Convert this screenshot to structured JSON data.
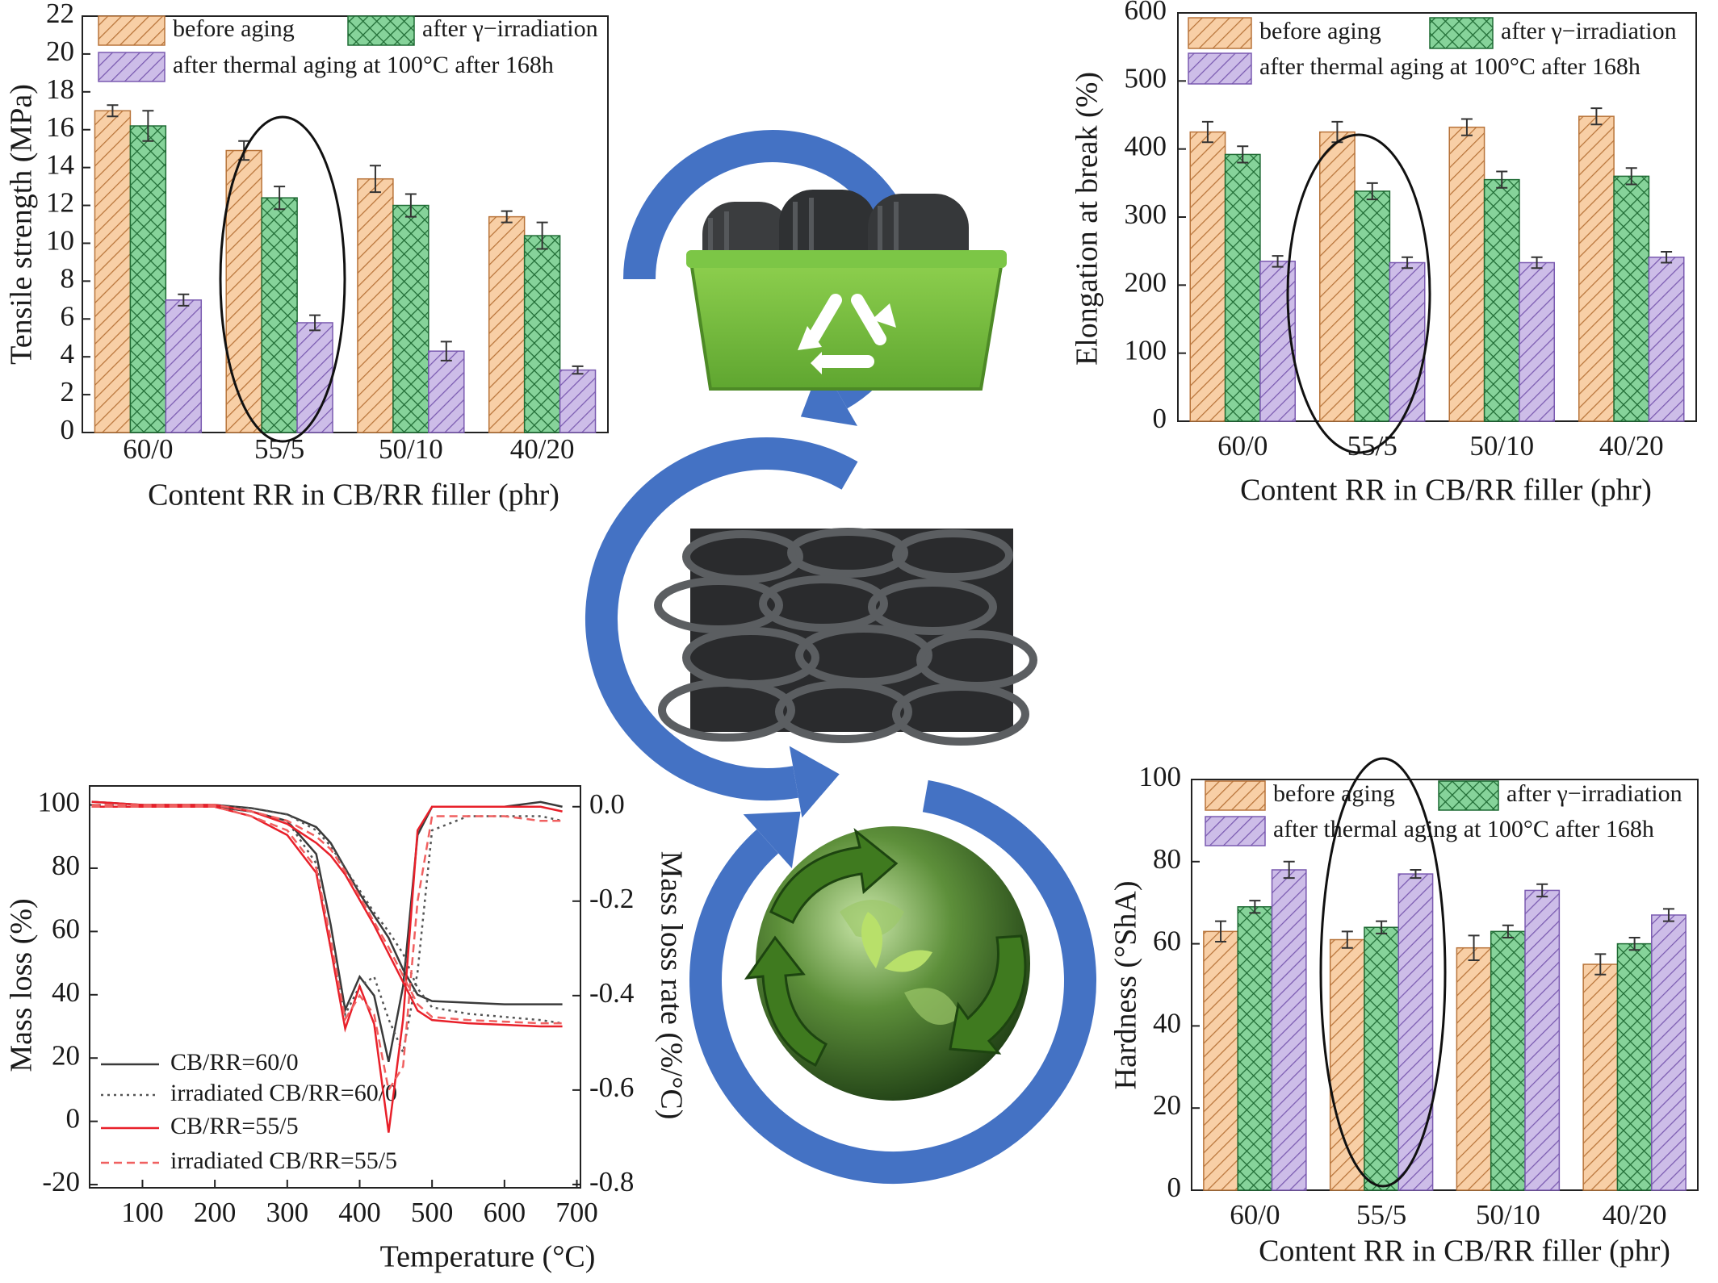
{
  "chart_data": [
    {
      "type": "bar",
      "y_label": "Tensile strength (MPa)",
      "x_label": "Content RR in CB/RR filler (phr)",
      "categories": [
        "60/0",
        "55/5",
        "50/10",
        "40/20"
      ],
      "ylim": [
        0,
        22
      ],
      "yticks": [
        0,
        2,
        4,
        6,
        8,
        10,
        12,
        14,
        16,
        18,
        20,
        22
      ],
      "series": [
        {
          "name": "before aging",
          "color": "#f8cfa6",
          "hatch_color": "#b8743a",
          "pattern": "hatch",
          "values": [
            17.0,
            14.9,
            13.4,
            11.4
          ],
          "errors": [
            0.3,
            0.5,
            0.7,
            0.3
          ]
        },
        {
          "name": "after γ−irradiation",
          "color": "#86d39a",
          "hatch_color": "#1f6b34",
          "pattern": "cross",
          "values": [
            16.2,
            12.4,
            12.0,
            10.4
          ],
          "errors": [
            0.8,
            0.6,
            0.6,
            0.7
          ]
        },
        {
          "name": "after thermal aging at 100°C after 168h",
          "color": "#cdbde8",
          "hatch_color": "#7a5ab0",
          "pattern": "hatch",
          "values": [
            7.0,
            5.8,
            4.3,
            3.3
          ],
          "errors": [
            0.3,
            0.4,
            0.5,
            0.2
          ]
        }
      ]
    },
    {
      "type": "bar",
      "y_label": "Elongation at break (%)",
      "x_label": "Content RR in CB/RR filler (phr)",
      "categories": [
        "60/0",
        "55/5",
        "50/10",
        "40/20"
      ],
      "ylim": [
        0,
        600
      ],
      "yticks": [
        0,
        100,
        200,
        300,
        400,
        500,
        600
      ],
      "series": [
        {
          "name": "before aging",
          "color": "#f8cfa6",
          "hatch_color": "#b8743a",
          "pattern": "hatch",
          "values": [
            425,
            425,
            432,
            448
          ],
          "errors": [
            15,
            15,
            12,
            12
          ]
        },
        {
          "name": "after γ−irradiation",
          "color": "#86d39a",
          "hatch_color": "#1f6b34",
          "pattern": "cross",
          "values": [
            392,
            338,
            355,
            360
          ],
          "errors": [
            12,
            12,
            12,
            12
          ]
        },
        {
          "name": "after thermal aging at 100°C after 168h",
          "color": "#cdbde8",
          "hatch_color": "#7a5ab0",
          "pattern": "hatch",
          "values": [
            235,
            233,
            233,
            241
          ],
          "errors": [
            8,
            8,
            8,
            8
          ]
        }
      ]
    },
    {
      "type": "bar",
      "y_label": "Hardness (°ShA)",
      "x_label": "Content RR in CB/RR filler (phr)",
      "categories": [
        "60/0",
        "55/5",
        "50/10",
        "40/20"
      ],
      "ylim": [
        0,
        100
      ],
      "yticks": [
        0,
        20,
        40,
        60,
        80,
        100
      ],
      "series": [
        {
          "name": "before aging",
          "color": "#f8cfa6",
          "hatch_color": "#b8743a",
          "pattern": "hatch",
          "values": [
            63,
            61,
            59,
            55
          ],
          "errors": [
            2.5,
            2,
            3,
            2.5
          ]
        },
        {
          "name": "after γ−irradiation",
          "color": "#86d39a",
          "hatch_color": "#1f6b34",
          "pattern": "cross",
          "values": [
            69,
            64,
            63,
            60
          ],
          "errors": [
            1.5,
            1.5,
            1.5,
            1.5
          ]
        },
        {
          "name": "after thermal aging at 100°C after 168h",
          "color": "#cdbde8",
          "hatch_color": "#7a5ab0",
          "pattern": "hatch",
          "values": [
            78,
            77,
            73,
            67
          ],
          "errors": [
            2,
            1,
            1.5,
            1.5
          ]
        }
      ]
    },
    {
      "type": "line",
      "x_label": "Temperature (°C)",
      "y_label": "Mass loss (%)",
      "y2_label": "Mass loss rate (%/°C)",
      "x": [
        30,
        100,
        200,
        250,
        300,
        340,
        360,
        380,
        400,
        420,
        440,
        460,
        480,
        500,
        550,
        600,
        650,
        680
      ],
      "xlim": [
        27,
        705
      ],
      "xticks": [
        100,
        200,
        300,
        400,
        500,
        600,
        700
      ],
      "ylim": [
        -21,
        106
      ],
      "yticks": [
        -20,
        0,
        20,
        40,
        60,
        80,
        100
      ],
      "y2lim": [
        -0.807,
        0.044
      ],
      "y2ticks": [
        {
          "value": 0,
          "label": "0.0"
        },
        -0.2,
        -0.4,
        -0.6,
        -0.8
      ],
      "series": [
        {
          "name": "CB/RR=60/0",
          "color": "#3a3a3a",
          "dash": "solid",
          "values": [
            101,
            100,
            100,
            99,
            97,
            93,
            88,
            80,
            72,
            65,
            58,
            48,
            40,
            38,
            37.5,
            37,
            37,
            37
          ],
          "rate": [
            0,
            0,
            0,
            -0.01,
            -0.03,
            -0.1,
            -0.25,
            -0.43,
            -0.36,
            -0.4,
            -0.54,
            -0.38,
            -0.06,
            0,
            0,
            0,
            0.01,
            0
          ]
        },
        {
          "name": "irradiated CB/RR=60/0",
          "color": "#555555",
          "dash": "dotted",
          "values": [
            100,
            100,
            100,
            99,
            97,
            92,
            87,
            80,
            73,
            66,
            60,
            53,
            42,
            36,
            34,
            33,
            32,
            31
          ],
          "rate": [
            0,
            0,
            0,
            -0.01,
            -0.03,
            -0.12,
            -0.3,
            -0.44,
            -0.38,
            -0.36,
            -0.45,
            -0.52,
            -0.35,
            -0.05,
            -0.02,
            -0.02,
            -0.02,
            -0.03
          ]
        },
        {
          "name": "CB/RR=55/5",
          "color": "#e8202a",
          "dash": "solid",
          "values": [
            101,
            100,
            100,
            98,
            94,
            88,
            84,
            78,
            70,
            62,
            53,
            44,
            35,
            32,
            31,
            30.5,
            30,
            30
          ],
          "rate": [
            0,
            0,
            0,
            -0.02,
            -0.06,
            -0.14,
            -0.3,
            -0.47,
            -0.38,
            -0.46,
            -0.69,
            -0.45,
            -0.05,
            0,
            0,
            0,
            0,
            -0.01
          ]
        },
        {
          "name": "irradiated CB/RR=55/5",
          "color": "#f06060",
          "dash": "dashed",
          "values": [
            100,
            100,
            100,
            98,
            95,
            90,
            86,
            79,
            71,
            63,
            55,
            46,
            37,
            33,
            32,
            31.5,
            31,
            31
          ],
          "rate": [
            0,
            0,
            0,
            -0.02,
            -0.05,
            -0.13,
            -0.28,
            -0.45,
            -0.4,
            -0.44,
            -0.6,
            -0.55,
            -0.2,
            -0.02,
            -0.02,
            -0.02,
            -0.03,
            -0.03
          ]
        }
      ]
    }
  ]
}
